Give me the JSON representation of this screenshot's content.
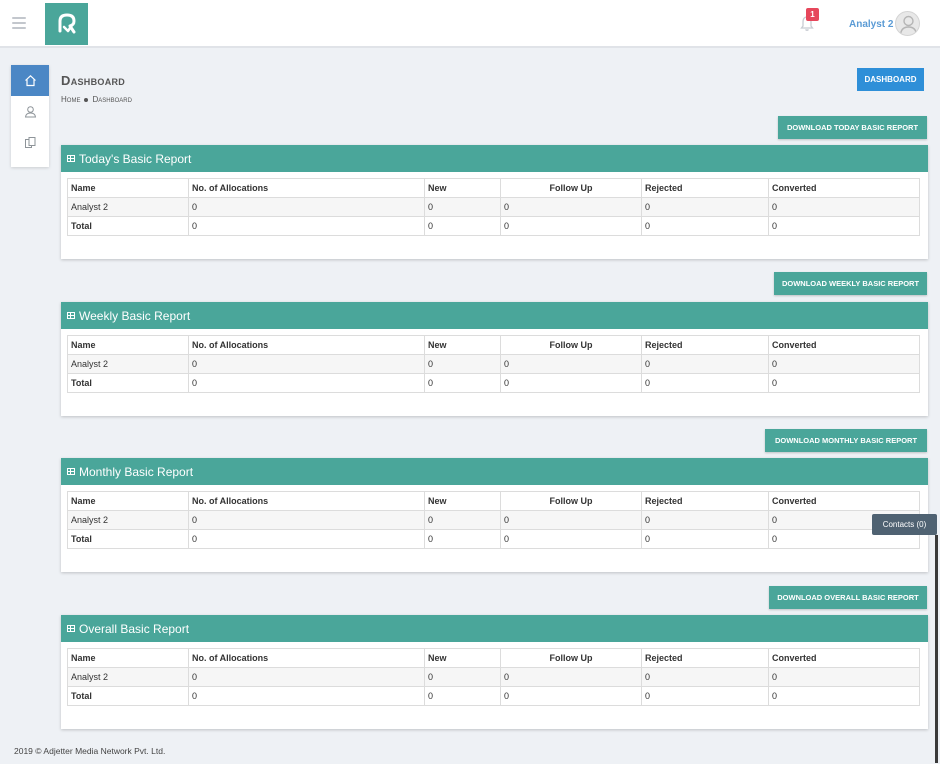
{
  "header": {
    "notification_count": "1",
    "user_name": "Analyst 2"
  },
  "page": {
    "title": "Dashboard",
    "breadcrumb": [
      "Home",
      "Dashboard"
    ],
    "dashboard_button": "DASHBOARD"
  },
  "columns": [
    "Name",
    "No. of Allocations",
    "New",
    "Follow Up",
    "Rejected",
    "Converted"
  ],
  "reports": [
    {
      "title": "Today's Basic Report",
      "download_label": "DOWNLOAD TODAY BASIC REPORT",
      "rows": [
        [
          "Analyst 2",
          "0",
          "0",
          "0",
          "0",
          "0"
        ],
        [
          "Total",
          "0",
          "0",
          "0",
          "0",
          "0"
        ]
      ]
    },
    {
      "title": "Weekly Basic Report",
      "download_label": "DOWNLOAD WEEKLY BASIC REPORT",
      "rows": [
        [
          "Analyst 2",
          "0",
          "0",
          "0",
          "0",
          "0"
        ],
        [
          "Total",
          "0",
          "0",
          "0",
          "0",
          "0"
        ]
      ]
    },
    {
      "title": "Monthly Basic Report",
      "download_label": "DOWNLOAD MONTHLY BASIC REPORT",
      "rows": [
        [
          "Analyst 2",
          "0",
          "0",
          "0",
          "0",
          "0"
        ],
        [
          "Total",
          "0",
          "0",
          "0",
          "0",
          "0"
        ]
      ]
    },
    {
      "title": "Overall Basic Report",
      "download_label": "DOWNLOAD OVERALL BASIC REPORT",
      "rows": [
        [
          "Analyst 2",
          "0",
          "0",
          "0",
          "0",
          "0"
        ],
        [
          "Total",
          "0",
          "0",
          "0",
          "0",
          "0"
        ]
      ]
    }
  ],
  "contacts_label": "Contacts (0)",
  "footer": "2019 © Adjetter Media Network Pvt. Ltd.",
  "colors": {
    "teal": "#4aa69a",
    "blue": "#2e8fd8",
    "badge": "#e6475b"
  }
}
